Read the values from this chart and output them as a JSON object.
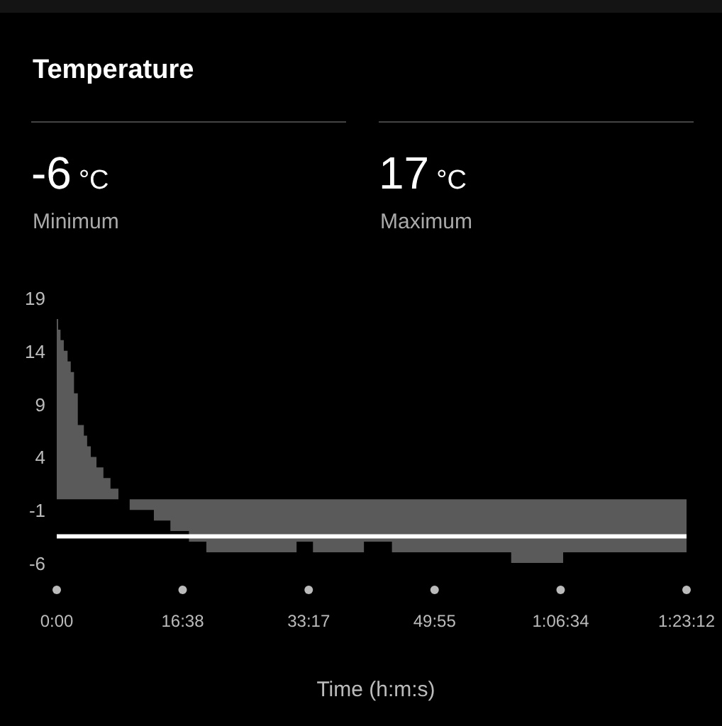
{
  "chart_data": {
    "type": "area",
    "title": "Temperature",
    "annotations": [
      "-6",
      "°C",
      "Minimum",
      "17",
      "°C",
      "Maximum"
    ],
    "xlabel": "Time (h:m:s)",
    "x": [
      0,
      11,
      11,
      30,
      30,
      56,
      56,
      86,
      86,
      111,
      111,
      137,
      137,
      167,
      167,
      215,
      215,
      241,
      241,
      270,
      270,
      315,
      315,
      370,
      370,
      426,
      426,
      489,
      489,
      578,
      578,
      770,
      770,
      901,
      901,
      1048,
      1048,
      1186,
      1186,
      1901,
      1901,
      2031,
      2031,
      2435,
      2435,
      2657,
      2657,
      3602,
      3602,
      4014,
      4014,
      4992
    ],
    "series": [
      {
        "color": "#5a5a5a",
        "values": [
          17,
          17,
          16,
          16,
          15,
          15,
          14,
          14,
          13,
          13,
          12,
          12,
          10,
          10,
          7,
          7,
          6,
          6,
          5,
          5,
          4,
          4,
          3,
          3,
          2,
          2,
          1,
          1,
          0,
          0,
          -1,
          -1,
          -2,
          -2,
          -3,
          -3,
          -4,
          -4,
          -5,
          -5,
          -4,
          -4,
          -5,
          -5,
          -4,
          -4,
          -5,
          -5,
          -6,
          -6,
          -5,
          -5
        ]
      }
    ],
    "xlim": [
      0,
      4992
    ],
    "xticks": [
      {
        "value": 0,
        "label": "0:00"
      },
      {
        "value": 998,
        "label": "16:38"
      },
      {
        "value": 1997,
        "label": "33:17"
      },
      {
        "value": 2995,
        "label": "49:55"
      },
      {
        "value": 3994,
        "label": "1:06:34"
      },
      {
        "value": 4992,
        "label": "1:23:12"
      }
    ],
    "ylim": [
      -6,
      19
    ],
    "yticks": [
      19,
      14,
      9,
      4,
      -1,
      -6
    ],
    "ref_lines": [
      {
        "axis": "y",
        "value": -3.5,
        "color": "#ffffff"
      }
    ]
  }
}
